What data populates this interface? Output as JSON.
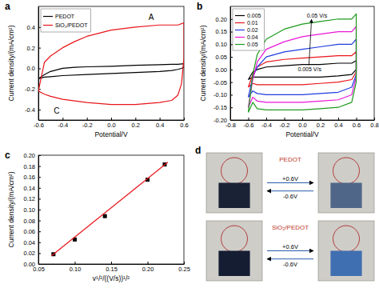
{
  "chart_data": [
    {
      "type": "line",
      "title": "a",
      "x_label": "Potential/V",
      "y_label": "Current density/(mA/cm²)",
      "xlim": [
        -0.6,
        0.6
      ],
      "ylim": [
        -0.5,
        0.6
      ],
      "xticks": [
        -0.6,
        -0.4,
        -0.2,
        {
          "value": 0,
          "label": "0.0"
        },
        0.2,
        0.4,
        0.6
      ],
      "yticks": [
        -0.4,
        -0.2,
        {
          "value": 0,
          "label": "0.0"
        },
        0.2,
        0.4
      ],
      "legend": "upper left",
      "x": [
        -0.6,
        -0.55,
        -0.5,
        -0.4,
        -0.3,
        -0.2,
        0,
        0.2,
        0.4,
        0.5,
        0.55,
        0.6,
        0.6,
        0.58,
        0.55,
        0.5,
        0.4,
        0.2,
        0,
        -0.2,
        -0.4,
        -0.5,
        -0.55,
        -0.6
      ],
      "series": [
        {
          "name": "PEDOT",
          "color": "#000000",
          "values": [
            -0.1,
            -0.06,
            -0.03,
            0.0,
            0.01,
            0.015,
            0.02,
            0.03,
            0.035,
            0.04,
            0.04,
            0.045,
            0.01,
            0.0,
            -0.01,
            -0.02,
            -0.03,
            -0.04,
            -0.05,
            -0.06,
            -0.07,
            -0.08,
            -0.085,
            -0.1
          ]
        },
        {
          "name": "SiO₂/PEDOT",
          "color": "#e8151b",
          "values": [
            -0.22,
            0.06,
            0.12,
            0.2,
            0.26,
            0.31,
            0.37,
            0.4,
            0.42,
            0.42,
            0.42,
            0.44,
            0.1,
            -0.15,
            -0.26,
            -0.31,
            -0.33,
            -0.35,
            -0.35,
            -0.33,
            -0.3,
            -0.27,
            -0.25,
            -0.22
          ]
        }
      ],
      "annotations": [
        {
          "text": "A",
          "x": 0.33,
          "y": 0.47
        },
        {
          "text": "C",
          "x": -0.45,
          "y": -0.44
        }
      ]
    },
    {
      "type": "line",
      "title": "b",
      "x_label": "Potential/V",
      "y_label": "Current density/(mA/cm²)",
      "xlim": [
        -0.8,
        0.8
      ],
      "ylim": [
        -0.2,
        0.25
      ],
      "xticks": [
        -0.8,
        -0.6,
        -0.4,
        -0.2,
        {
          "value": 0,
          "label": "0.0"
        },
        0.2,
        0.4,
        0.6,
        0.8
      ],
      "yticks": [
        {
          "value": -0.2,
          "label": "-0.20"
        },
        -0.15,
        {
          "value": -0.1,
          "label": "-0.10"
        },
        -0.05,
        {
          "value": 0,
          "label": "0.00"
        },
        0.05,
        {
          "value": 0.1,
          "label": "0.10"
        },
        0.15,
        {
          "value": 0.2,
          "label": "0.20"
        }
      ],
      "legend": "upper left",
      "x": [
        -0.6,
        -0.55,
        -0.5,
        -0.4,
        -0.2,
        0,
        0.2,
        0.4,
        0.55,
        0.6,
        0.6,
        0.55,
        0.4,
        0.2,
        0,
        -0.2,
        -0.4,
        -0.5,
        -0.55,
        -0.6
      ],
      "series": [
        {
          "name": "0.005",
          "color": "#000000",
          "values": [
            -0.04,
            -0.01,
            0.0,
            0.01,
            0.015,
            0.02,
            0.02,
            0.025,
            0.025,
            0.035,
            0.0,
            -0.02,
            -0.025,
            -0.03,
            -0.03,
            -0.03,
            -0.03,
            -0.03,
            -0.03,
            -0.04
          ]
        },
        {
          "name": "0.01",
          "color": "#e8151b",
          "values": [
            -0.07,
            -0.02,
            0.01,
            0.03,
            0.04,
            0.045,
            0.05,
            0.055,
            0.055,
            0.07,
            -0.01,
            -0.04,
            -0.05,
            -0.055,
            -0.06,
            -0.06,
            -0.06,
            -0.06,
            -0.055,
            -0.07
          ]
        },
        {
          "name": "0.02",
          "color": "#1f3de0",
          "values": [
            -0.11,
            -0.03,
            0.01,
            0.05,
            0.07,
            0.08,
            0.09,
            0.1,
            0.1,
            0.12,
            -0.02,
            -0.07,
            -0.09,
            -0.095,
            -0.1,
            -0.1,
            -0.1,
            -0.095,
            -0.085,
            -0.11
          ]
        },
        {
          "name": "0.04",
          "color": "#e817d8",
          "values": [
            -0.15,
            -0.04,
            0.03,
            0.08,
            0.11,
            0.13,
            0.14,
            0.15,
            0.15,
            0.17,
            -0.03,
            -0.1,
            -0.12,
            -0.125,
            -0.13,
            -0.13,
            -0.13,
            -0.125,
            -0.11,
            -0.15
          ]
        },
        {
          "name": "0.05",
          "color": "#1e9a1e",
          "values": [
            -0.17,
            -0.02,
            0.06,
            0.12,
            0.16,
            0.18,
            0.19,
            0.2,
            0.2,
            0.22,
            -0.05,
            -0.13,
            -0.15,
            -0.155,
            -0.16,
            -0.16,
            -0.16,
            -0.155,
            -0.13,
            -0.17
          ]
        }
      ],
      "annotations": [
        {
          "text": "0.05 V/s",
          "x": 0.05,
          "y": 0.205
        },
        {
          "text": "0.005 V/s",
          "x": -0.05,
          "y": -0.008
        }
      ]
    },
    {
      "type": "scatter",
      "title": "c",
      "x_label": "v¹/²/((V/s))¹/²",
      "y_label": "Current density/(mA/cm²)",
      "xlim": [
        0.05,
        0.25
      ],
      "ylim": [
        0,
        0.2
      ],
      "xticks": [
        0.05,
        {
          "value": 0.1,
          "label": "0.10"
        },
        0.15,
        {
          "value": 0.2,
          "label": "0.20"
        },
        0.25
      ],
      "yticks": [
        {
          "value": 0,
          "label": "0.00"
        },
        0.02,
        0.04,
        0.06,
        0.08,
        {
          "value": 0.1,
          "label": "0.10"
        },
        0.12,
        0.14,
        0.16,
        0.18,
        {
          "value": 0.2,
          "label": "0.20"
        }
      ],
      "series": [
        {
          "type": "scatter",
          "marker": "square",
          "color": "#000000",
          "x": [
            0.0707,
            0.1,
            0.1414,
            0.2,
            0.2236
          ],
          "values": [
            0.018,
            0.045,
            0.088,
            0.155,
            0.183
          ]
        },
        {
          "type": "line",
          "color": "#e8151b",
          "x": [
            0.068,
            0.228
          ],
          "values": [
            0.015,
            0.187
          ]
        }
      ]
    },
    {
      "type": "photo",
      "title": "d",
      "rows": [
        {
          "label": "PEDOT",
          "forward": "+0.6V",
          "backward": "-0.6V"
        },
        {
          "label": "SiO₂/PEDOT",
          "forward": "+0.6V",
          "backward": "-0.6V"
        }
      ]
    }
  ]
}
